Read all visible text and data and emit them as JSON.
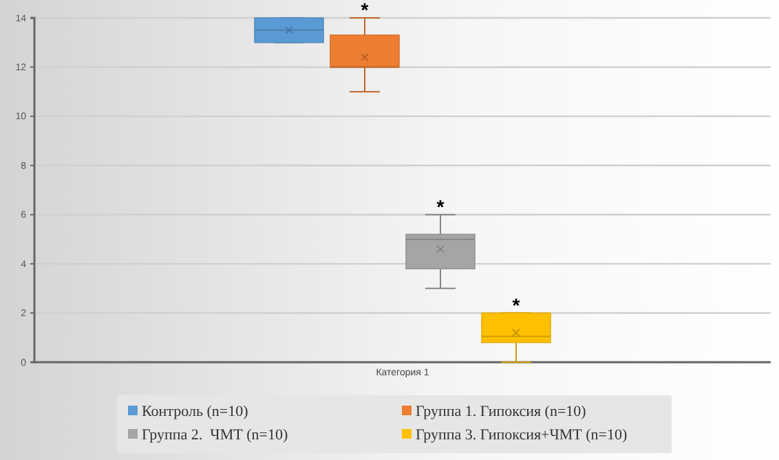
{
  "chart_data": {
    "type": "box",
    "categories": [
      "Категория 1"
    ],
    "series": [
      {
        "name": "Контроль (n=10)",
        "color": "#5b9bd5",
        "boxes": [
          {
            "low": 13,
            "q1": 13,
            "median": 13.5,
            "q3": 14,
            "high": 14,
            "mean": 13.5
          }
        ]
      },
      {
        "name": "Группа 1. Гипоксия (n=10)",
        "color": "#ed7d31",
        "boxes": [
          {
            "low": 11,
            "q1": 12,
            "median": 12,
            "q3": 13.3,
            "high": 14,
            "mean": 12.4
          }
        ]
      },
      {
        "name": "Группа 2.  ЧМТ (n=10)",
        "color": "#a5a5a5",
        "boxes": [
          {
            "low": 3,
            "q1": 3.8,
            "median": 5,
            "q3": 5.2,
            "high": 6,
            "mean": 4.6
          }
        ]
      },
      {
        "name": "Группа 3. Гипоксия+ЧМТ (n=10)",
        "color": "#ffc000",
        "boxes": [
          {
            "low": 0,
            "q1": 0.8,
            "median": 1.05,
            "q3": 2,
            "high": 2,
            "mean": 1.2
          }
        ]
      }
    ],
    "annotations": [
      "*",
      "*",
      "*"
    ],
    "ylim": [
      0,
      14
    ],
    "yticks": [
      0,
      2,
      4,
      6,
      8,
      10,
      12,
      14
    ],
    "grid": "y",
    "legend": "bottom"
  }
}
